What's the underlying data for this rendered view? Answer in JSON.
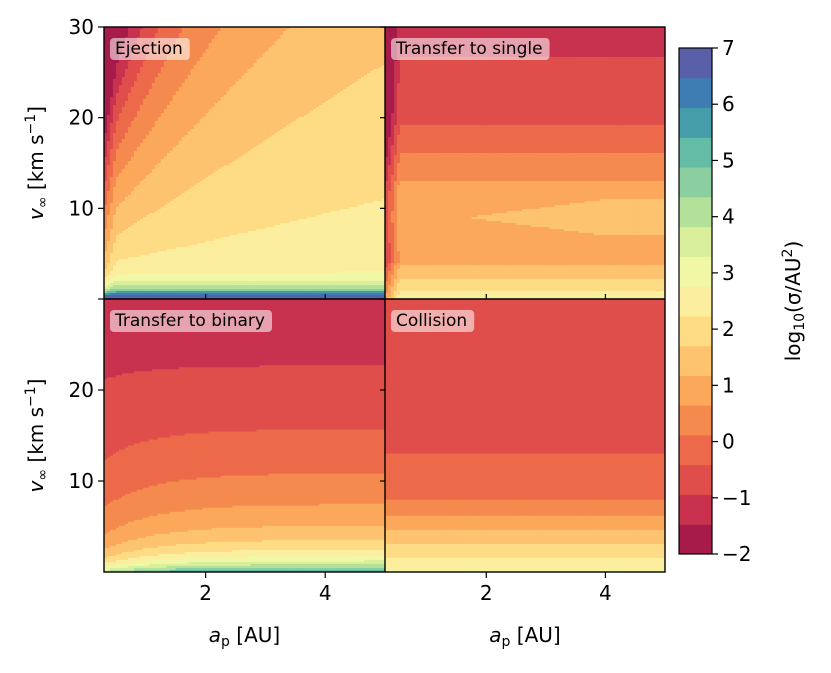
{
  "chart_data": {
    "type": "heatmap",
    "subtype": "filled-contour-grid",
    "layout": "2x2 panels, shared axes",
    "x_label_main": "a",
    "x_label_sub": "p",
    "x_label_unit": "[AU]",
    "x_range": [
      0.3,
      5.0
    ],
    "x_ticks": [
      2,
      4
    ],
    "x_tick_labels": [
      "2",
      "4"
    ],
    "y_label_main": "v",
    "y_label_sub": "∞",
    "y_label_unit_pre": "[km s",
    "y_label_unit_sup": "−1",
    "y_label_unit_post": "]",
    "y_range": [
      0,
      30
    ],
    "y_ticks": [
      10,
      20,
      30
    ],
    "y_tick_labels": [
      "10",
      "20",
      "30"
    ],
    "panels": [
      {
        "title": "Ejection",
        "position": "top-left"
      },
      {
        "title": "Transfer to single",
        "position": "top-right"
      },
      {
        "title": "Transfer to binary",
        "position": "bottom-left"
      },
      {
        "title": "Collision",
        "position": "bottom-right"
      }
    ],
    "colorbar": {
      "label_main": "log",
      "label_sub": "10",
      "label_open": "(σ/AU",
      "label_sup": "2",
      "label_close": ")",
      "min": -2,
      "max": 7,
      "step": 0.5,
      "ticks": [
        -2,
        -1,
        0,
        1,
        2,
        3,
        4,
        5,
        6,
        7
      ],
      "tick_labels": [
        "−2",
        "−1",
        "0",
        "1",
        "2",
        "3",
        "4",
        "5",
        "6",
        "7"
      ],
      "colormap": "Spectral",
      "colors": [
        "#a71b4b",
        "#c8324e",
        "#df4e4b",
        "#ec6a4a",
        "#f58a4f",
        "#fba85a",
        "#fdc36e",
        "#fddc85",
        "#fbef9f",
        "#f0f7a5",
        "#d9ef9b",
        "#b4e199",
        "#8bcfa0",
        "#64bba6",
        "#449da9",
        "#3e7db4",
        "#5a60a8"
      ]
    },
    "fields": {
      "Ejection": "log10 cross-section ≈ 0 to -0.5 at smallest a_p, rising to ≈ 2–2.5 toward larger a_p and low v; steep rise to ≈ 7 as v → 0",
      "Transfer to single": "≈ -1 at high v, ≈ 0.5–1 plateau near v ≈ 10, rises to ≈ 2 near v → 0; dips to ≈ -1 at smallest a_p",
      "Transfer to binary": "≈ -1 at high v, increasing monotonically toward ≈ 4–5 as v → 0",
      "Collision": "≈ -1 above v ≈ 13, ≈ -0.5 to 0.5 between, rising to ≈ 2 as v → 0"
    }
  }
}
